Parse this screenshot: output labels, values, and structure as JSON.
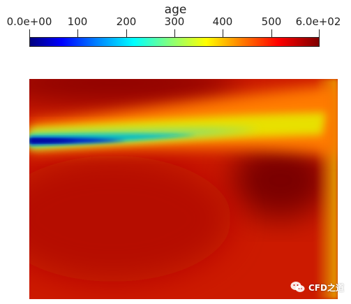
{
  "legend": {
    "title": "age",
    "ticks": [
      {
        "label": "0.0e+00",
        "value": 0
      },
      {
        "label": "100",
        "value": 100
      },
      {
        "label": "200",
        "value": 200
      },
      {
        "label": "300",
        "value": 300
      },
      {
        "label": "400",
        "value": 400
      },
      {
        "label": "500",
        "value": 500
      },
      {
        "label": "6.0e+02",
        "value": 600
      }
    ],
    "range": [
      0,
      600
    ],
    "colormap": [
      "#00007f",
      "#0000ff",
      "#0080ff",
      "#00ffff",
      "#80ff80",
      "#ffff00",
      "#ff8000",
      "#ff0000",
      "#7f0000"
    ]
  },
  "watermark": {
    "text": "CFD之道",
    "icon": "wechat-logo-icon"
  }
}
